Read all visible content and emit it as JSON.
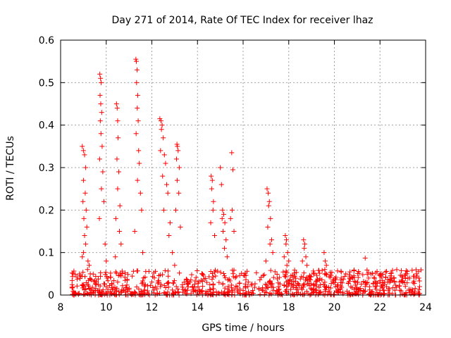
{
  "chart_data": {
    "type": "scatter",
    "title": "Day 271 of 2014, Rate Of TEC Index for receiver lhaz",
    "xlabel": "GPS time / hours",
    "ylabel": "ROTI / TECUs",
    "xlim": [
      8,
      24
    ],
    "ylim": [
      0,
      0.6
    ],
    "xticks": [
      8,
      10,
      12,
      14,
      16,
      18,
      20,
      22,
      24
    ],
    "yticks": [
      0,
      0.1,
      0.2,
      0.3,
      0.4,
      0.5,
      0.6
    ],
    "xtick_labels": [
      "8",
      "10",
      "12",
      "14",
      "16",
      "18",
      "20",
      "22",
      "24"
    ],
    "ytick_labels": [
      "0",
      "0.1",
      "0.2",
      "0.3",
      "0.4",
      "0.5",
      "0.6"
    ],
    "grid": true,
    "marker": "+",
    "series": [
      {
        "name": "ROTI",
        "color": "#ff0000",
        "x": [
          8.95,
          9.0,
          9.05,
          9.1,
          9.0,
          9.08,
          8.98,
          9.12,
          9.02,
          9.15,
          9.05,
          9.1,
          9.0,
          8.95,
          9.2,
          9.25,
          9.18,
          9.3,
          9.72,
          9.75,
          9.78,
          9.73,
          9.76,
          9.8,
          9.74,
          9.77,
          9.82,
          9.71,
          9.85,
          9.79,
          9.9,
          9.7,
          9.95,
          10.0,
          10.45,
          10.48,
          10.5,
          10.52,
          10.47,
          10.55,
          10.5,
          10.6,
          10.42,
          10.58,
          10.65,
          10.4,
          11.3,
          11.32,
          11.35,
          11.33,
          11.38,
          11.36,
          11.4,
          11.31,
          11.42,
          11.45,
          11.37,
          11.5,
          11.55,
          11.25,
          11.6,
          12.35,
          12.4,
          12.45,
          12.42,
          12.5,
          12.38,
          12.55,
          12.6,
          12.47,
          12.65,
          12.7,
          12.52,
          12.8,
          12.75,
          12.9,
          13.0,
          13.1,
          13.12,
          13.15,
          13.08,
          13.2,
          13.11,
          13.18,
          13.05,
          13.25,
          14.6,
          14.65,
          14.62,
          14.7,
          14.68,
          14.58,
          14.75,
          15.0,
          15.05,
          15.1,
          15.15,
          15.08,
          15.2,
          15.12,
          15.25,
          15.18,
          15.3,
          15.5,
          15.55,
          15.52,
          15.45,
          15.6,
          17.05,
          17.1,
          17.15,
          17.12,
          17.2,
          17.08,
          17.25,
          17.18,
          17.3,
          17.0,
          17.85,
          17.9,
          17.88,
          17.95,
          17.8,
          18.0,
          17.92,
          18.65,
          18.7,
          18.68,
          18.75,
          18.6,
          18.8,
          19.55,
          19.6,
          19.65,
          19.58,
          20.3,
          20.5,
          20.8,
          21.0,
          21.35,
          21.5,
          22.0,
          22.55,
          22.6,
          23.0,
          23.3,
          23.6,
          23.7
        ],
        "y": [
          0.35,
          0.34,
          0.33,
          0.3,
          0.27,
          0.24,
          0.22,
          0.2,
          0.18,
          0.16,
          0.14,
          0.12,
          0.1,
          0.09,
          0.08,
          0.07,
          0.06,
          0.05,
          0.52,
          0.51,
          0.5,
          0.47,
          0.45,
          0.43,
          0.41,
          0.38,
          0.35,
          0.32,
          0.29,
          0.25,
          0.22,
          0.18,
          0.12,
          0.08,
          0.45,
          0.44,
          0.41,
          0.37,
          0.32,
          0.29,
          0.25,
          0.21,
          0.18,
          0.15,
          0.12,
          0.09,
          0.555,
          0.55,
          0.53,
          0.5,
          0.47,
          0.44,
          0.41,
          0.38,
          0.34,
          0.31,
          0.27,
          0.24,
          0.2,
          0.15,
          0.1,
          0.415,
          0.41,
          0.4,
          0.39,
          0.37,
          0.34,
          0.33,
          0.31,
          0.28,
          0.26,
          0.24,
          0.2,
          0.17,
          0.14,
          0.1,
          0.07,
          0.355,
          0.35,
          0.34,
          0.32,
          0.3,
          0.27,
          0.24,
          0.2,
          0.16,
          0.28,
          0.27,
          0.25,
          0.22,
          0.2,
          0.17,
          0.14,
          0.3,
          0.26,
          0.2,
          0.19,
          0.18,
          0.17,
          0.15,
          0.13,
          0.11,
          0.09,
          0.335,
          0.295,
          0.2,
          0.18,
          0.15,
          0.25,
          0.24,
          0.22,
          0.21,
          0.18,
          0.16,
          0.13,
          0.12,
          0.1,
          0.08,
          0.14,
          0.13,
          0.12,
          0.1,
          0.09,
          0.08,
          0.07,
          0.13,
          0.12,
          0.11,
          0.09,
          0.08,
          0.07,
          0.1,
          0.08,
          0.07,
          0.06,
          0.04,
          0.05,
          0.04,
          0.03,
          0.087,
          0.04,
          0.03,
          0.058,
          0.04,
          0.03,
          0.04,
          0.05,
          0.04
        ]
      }
    ],
    "background_band": {
      "x_start": 8.5,
      "x_end": 23.8,
      "y_max": 0.06
    }
  }
}
